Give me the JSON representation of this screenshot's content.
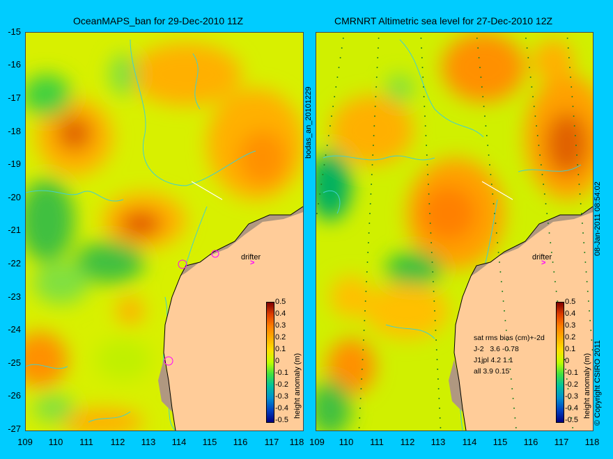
{
  "left_panel": {
    "title": "OceanMAPS_ban for 29-Dec-2010 11Z",
    "drifter_label": "drifter"
  },
  "right_panel": {
    "title": "CMRNRT Altimetric sea level  for 27-Dec-2010 12Z",
    "drifter_label": "drifter"
  },
  "y_ticks": [
    "-15",
    "-16",
    "-17",
    "-18",
    "-19",
    "-20",
    "-21",
    "-22",
    "-23",
    "-24",
    "-25",
    "-26",
    "-27"
  ],
  "x_ticks": [
    "109",
    "110",
    "111",
    "112",
    "113",
    "114",
    "115",
    "116",
    "117",
    "118"
  ],
  "colorbar": {
    "label": "height anomaly (m)",
    "ticks": [
      "0.5",
      "0.4",
      "0.3",
      "0.2",
      "0.1",
      "0",
      "-0.1",
      "-0.2",
      "-0.3",
      "-0.4",
      "-0.5"
    ],
    "colors": [
      "#800000",
      "#e04000",
      "#ff8000",
      "#ffb000",
      "#ffe000",
      "#c0ff00",
      "#40e040",
      "#00c0a0",
      "#0090d0",
      "#0040c0",
      "#000080"
    ]
  },
  "side_text_left": "bodas_an_20101229",
  "side_text_right": "08-Jan-2011 08:54:02",
  "copyright": "© Copyright CSIRO 2011",
  "stats": {
    "header": "sat rms bias (cm)+-2d",
    "rows": [
      "J-2   3.6 -0.78",
      "J1jpl 4.2 1.1",
      "all 3.9 0.15"
    ]
  },
  "colors": {
    "background": "#00ccff",
    "land": "#ffcc99",
    "coast_band": "#b09880",
    "contour": "#40d0d0",
    "drifter_marker": "#ff00ff"
  }
}
